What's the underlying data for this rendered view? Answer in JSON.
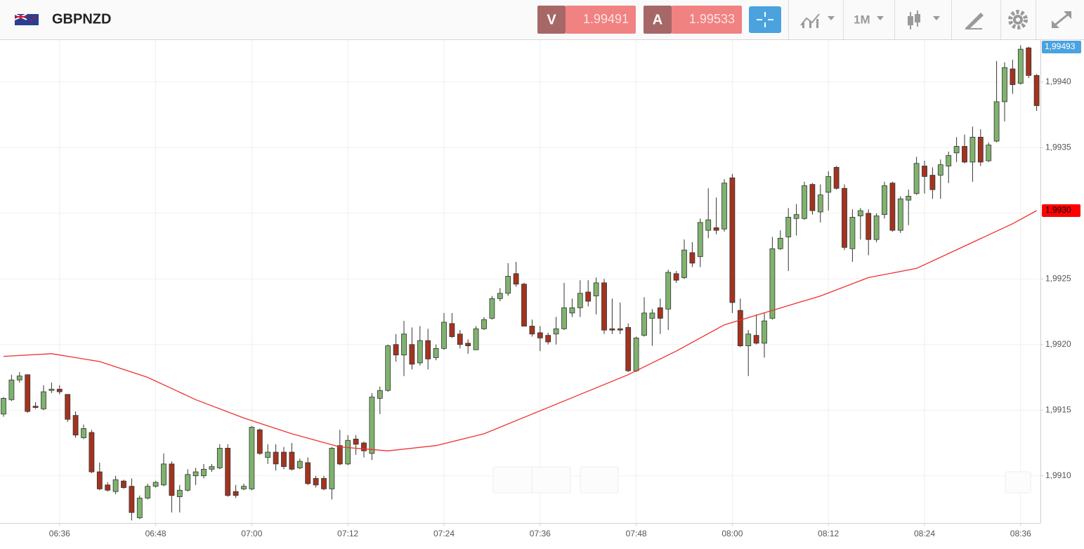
{
  "header": {
    "symbol": "GBPNZD",
    "bid_tag": "V",
    "bid": "1.99491",
    "ask_tag": "A",
    "ask": "1.99533",
    "timeframe": "1M"
  },
  "chart_data": {
    "type": "candlestick",
    "price_label": "1,99493",
    "ma_label": "1,9930",
    "up_color": "#7fb26e",
    "down_color": "#a3331f",
    "ma_color": "#f03030",
    "grid": true,
    "ylim": [
      1.99064,
      1.99432
    ],
    "yticks": [
      {
        "value": 1.991,
        "label": "1,9910"
      },
      {
        "value": 1.9915,
        "label": "1,9915"
      },
      {
        "value": 1.992,
        "label": "1,9920"
      },
      {
        "value": 1.9925,
        "label": "1,9925"
      },
      {
        "value": 1.993,
        "label": "1,9930"
      },
      {
        "value": 1.9935,
        "label": "1,9935"
      },
      {
        "value": 1.994,
        "label": "1,9940"
      }
    ],
    "xticks": [
      "06:36",
      "06:48",
      "07:00",
      "07:12",
      "07:24",
      "07:36",
      "07:48",
      "08:00",
      "08:12",
      "08:24",
      "08:36"
    ],
    "x": [
      "06:29",
      "06:30",
      "06:31",
      "06:32",
      "06:33",
      "06:34",
      "06:35",
      "06:36",
      "06:37",
      "06:38",
      "06:39",
      "06:40",
      "06:41",
      "06:42",
      "06:43",
      "06:44",
      "06:45",
      "06:46",
      "06:47",
      "06:48",
      "06:49",
      "06:50",
      "06:51",
      "06:52",
      "06:53",
      "06:54",
      "06:55",
      "06:56",
      "06:57",
      "06:58",
      "06:59",
      "07:00",
      "07:01",
      "07:02",
      "07:03",
      "07:04",
      "07:05",
      "07:06",
      "07:07",
      "07:08",
      "07:09",
      "07:10",
      "07:11",
      "07:12",
      "07:13",
      "07:14",
      "07:15",
      "07:16",
      "07:17",
      "07:18",
      "07:19",
      "07:20",
      "07:21",
      "07:22",
      "07:23",
      "07:24",
      "07:25",
      "07:26",
      "07:27",
      "07:28",
      "07:29",
      "07:30",
      "07:31",
      "07:32",
      "07:33",
      "07:34",
      "07:35",
      "07:36",
      "07:37",
      "07:38",
      "07:39",
      "07:40",
      "07:41",
      "07:42",
      "07:43",
      "07:44",
      "07:45",
      "07:46",
      "07:47",
      "07:48",
      "07:49",
      "07:50",
      "07:51",
      "07:52",
      "07:53",
      "07:54",
      "07:55",
      "07:56",
      "07:57",
      "07:58",
      "07:59",
      "08:00",
      "08:01",
      "08:02",
      "08:03",
      "08:04",
      "08:05",
      "08:06",
      "08:07",
      "08:08",
      "08:09",
      "08:10",
      "08:11",
      "08:12",
      "08:13",
      "08:14",
      "08:15",
      "08:16",
      "08:17",
      "08:18",
      "08:19",
      "08:20",
      "08:21",
      "08:22",
      "08:23",
      "08:24",
      "08:25",
      "08:26",
      "08:27",
      "08:28",
      "08:29",
      "08:30",
      "08:31",
      "08:32",
      "08:33",
      "08:34",
      "08:35",
      "08:36",
      "08:37",
      "08:38"
    ],
    "ohlc": [
      [
        1.99147,
        1.9916,
        1.99145,
        1.99159
      ],
      [
        1.99158,
        1.99177,
        1.99157,
        1.99173
      ],
      [
        1.99173,
        1.99179,
        1.99171,
        1.99176
      ],
      [
        1.99177,
        1.99177,
        1.99148,
        1.99149
      ],
      [
        1.99153,
        1.99156,
        1.99151,
        1.99152
      ],
      [
        1.99151,
        1.99169,
        1.9915,
        1.99164
      ],
      [
        1.99165,
        1.99171,
        1.99163,
        1.99166
      ],
      [
        1.99166,
        1.99169,
        1.99162,
        1.99164
      ],
      [
        1.99162,
        1.99162,
        1.99141,
        1.99143
      ],
      [
        1.99146,
        1.99149,
        1.99129,
        1.99131
      ],
      [
        1.99129,
        1.99139,
        1.99128,
        1.99136
      ],
      [
        1.99133,
        1.99135,
        1.99102,
        1.99103
      ],
      [
        1.99103,
        1.9911,
        1.99089,
        1.9909
      ],
      [
        1.99093,
        1.99095,
        1.99088,
        1.99089
      ],
      [
        1.99088,
        1.991,
        1.99086,
        1.99097
      ],
      [
        1.99096,
        1.99097,
        1.9909,
        1.99091
      ],
      [
        1.99092,
        1.99098,
        1.99066,
        1.99072
      ],
      [
        1.99068,
        1.99085,
        1.99067,
        1.99083
      ],
      [
        1.99083,
        1.99094,
        1.99082,
        1.99092
      ],
      [
        1.99092,
        1.99096,
        1.99091,
        1.99095
      ],
      [
        1.99093,
        1.99117,
        1.99092,
        1.99109
      ],
      [
        1.99109,
        1.99111,
        1.99072,
        1.99085
      ],
      [
        1.99084,
        1.99093,
        1.99072,
        1.99089
      ],
      [
        1.99089,
        1.99105,
        1.99088,
        1.99101
      ],
      [
        1.991,
        1.99106,
        1.99093,
        1.99103
      ],
      [
        1.991,
        1.99109,
        1.99098,
        1.99105
      ],
      [
        1.99105,
        1.99109,
        1.99103,
        1.99107
      ],
      [
        1.99106,
        1.99124,
        1.99105,
        1.99121
      ],
      [
        1.99121,
        1.99124,
        1.99084,
        1.99085
      ],
      [
        1.99088,
        1.99093,
        1.99083,
        1.99085
      ],
      [
        1.9909,
        1.99094,
        1.99089,
        1.99092
      ],
      [
        1.9909,
        1.99138,
        1.99089,
        1.99137
      ],
      [
        1.99135,
        1.99136,
        1.99116,
        1.99117
      ],
      [
        1.99114,
        1.99124,
        1.99109,
        1.99118
      ],
      [
        1.99118,
        1.99124,
        1.99104,
        1.99109
      ],
      [
        1.99118,
        1.99122,
        1.99105,
        1.99107
      ],
      [
        1.99118,
        1.99125,
        1.99104,
        1.99105
      ],
      [
        1.99106,
        1.99113,
        1.99105,
        1.99111
      ],
      [
        1.9911,
        1.99114,
        1.99093,
        1.99094
      ],
      [
        1.99098,
        1.991,
        1.99091,
        1.99093
      ],
      [
        1.99098,
        1.991,
        1.99089,
        1.9909
      ],
      [
        1.9909,
        1.99122,
        1.99082,
        1.99121
      ],
      [
        1.99123,
        1.99135,
        1.99108,
        1.99109
      ],
      [
        1.99109,
        1.99131,
        1.99108,
        1.99127
      ],
      [
        1.99128,
        1.99131,
        1.99116,
        1.99124
      ],
      [
        1.99125,
        1.99126,
        1.99114,
        1.99119
      ],
      [
        1.99117,
        1.99163,
        1.99112,
        1.9916
      ],
      [
        1.99159,
        1.99168,
        1.99147,
        1.99165
      ],
      [
        1.99165,
        1.992,
        1.99164,
        1.99199
      ],
      [
        1.992,
        1.99208,
        1.99187,
        1.99192
      ],
      [
        1.99192,
        1.99218,
        1.99176,
        1.99208
      ],
      [
        1.992,
        1.99213,
        1.99181,
        1.99185
      ],
      [
        1.99186,
        1.99214,
        1.99184,
        1.99203
      ],
      [
        1.99203,
        1.99212,
        1.99181,
        1.99189
      ],
      [
        1.9919,
        1.992,
        1.99188,
        1.99197
      ],
      [
        1.99197,
        1.99224,
        1.99196,
        1.99217
      ],
      [
        1.99216,
        1.99224,
        1.99205,
        1.99206
      ],
      [
        1.99208,
        1.99211,
        1.99197,
        1.992
      ],
      [
        1.99201,
        1.99204,
        1.99193,
        1.99199
      ],
      [
        1.99196,
        1.99214,
        1.99196,
        1.99212
      ],
      [
        1.99212,
        1.99221,
        1.99211,
        1.99219
      ],
      [
        1.9922,
        1.99237,
        1.99219,
        1.99235
      ],
      [
        1.99235,
        1.99243,
        1.99233,
        1.99239
      ],
      [
        1.99239,
        1.99262,
        1.99237,
        1.99252
      ],
      [
        1.99254,
        1.99263,
        1.99244,
        1.99246
      ],
      [
        1.99246,
        1.99247,
        1.99214,
        1.99214
      ],
      [
        1.99214,
        1.99219,
        1.99206,
        1.99208
      ],
      [
        1.99209,
        1.99214,
        1.99195,
        1.99205
      ],
      [
        1.99207,
        1.99209,
        1.992,
        1.99202
      ],
      [
        1.99208,
        1.99221,
        1.992,
        1.99212
      ],
      [
        1.99212,
        1.99247,
        1.99211,
        1.99228
      ],
      [
        1.99224,
        1.99235,
        1.99221,
        1.99228
      ],
      [
        1.99228,
        1.99249,
        1.99221,
        1.99239
      ],
      [
        1.9924,
        1.99249,
        1.99229,
        1.99233
      ],
      [
        1.99237,
        1.99251,
        1.99223,
        1.99247
      ],
      [
        1.99247,
        1.9925,
        1.99208,
        1.99211
      ],
      [
        1.99212,
        1.99235,
        1.99208,
        1.99211
      ],
      [
        1.99212,
        1.99232,
        1.99208,
        1.99211
      ],
      [
        1.99213,
        1.99216,
        1.99179,
        1.9918
      ],
      [
        1.9918,
        1.99206,
        1.99179,
        1.99205
      ],
      [
        1.99207,
        1.99236,
        1.99206,
        1.99224
      ],
      [
        1.9922,
        1.99227,
        1.99199,
        1.99224
      ],
      [
        1.99228,
        1.99235,
        1.99208,
        1.9922
      ],
      [
        1.99227,
        1.99257,
        1.99211,
        1.99255
      ],
      [
        1.99254,
        1.99256,
        1.99247,
        1.99249
      ],
      [
        1.99251,
        1.9928,
        1.9925,
        1.99272
      ],
      [
        1.9927,
        1.99278,
        1.99259,
        1.99262
      ],
      [
        1.99267,
        1.99296,
        1.99259,
        1.99293
      ],
      [
        1.99287,
        1.99319,
        1.99281,
        1.99295
      ],
      [
        1.99289,
        1.99312,
        1.99284,
        1.99287
      ],
      [
        1.99288,
        1.99326,
        1.99286,
        1.99323
      ],
      [
        1.99327,
        1.9933,
        1.99224,
        1.99232
      ],
      [
        1.99226,
        1.99235,
        1.99198,
        1.99199
      ],
      [
        1.99199,
        1.99211,
        1.99176,
        1.99208
      ],
      [
        1.99207,
        1.99223,
        1.992,
        1.99201
      ],
      [
        1.99201,
        1.99224,
        1.9919,
        1.99218
      ],
      [
        1.9922,
        1.99282,
        1.99219,
        1.99273
      ],
      [
        1.99273,
        1.99287,
        1.99272,
        1.99281
      ],
      [
        1.99282,
        1.99304,
        1.99256,
        1.99297
      ],
      [
        1.99296,
        1.99307,
        1.99283,
        1.99299
      ],
      [
        1.99296,
        1.99324,
        1.99295,
        1.99321
      ],
      [
        1.99322,
        1.99323,
        1.99299,
        1.99302
      ],
      [
        1.99301,
        1.99322,
        1.99293,
        1.99314
      ],
      [
        1.99316,
        1.99332,
        1.99302,
        1.99328
      ],
      [
        1.99335,
        1.99336,
        1.99318,
        1.99319
      ],
      [
        1.99319,
        1.99322,
        1.99272,
        1.99274
      ],
      [
        1.99273,
        1.99303,
        1.99263,
        1.99297
      ],
      [
        1.99298,
        1.99304,
        1.9928,
        1.99302
      ],
      [
        1.993,
        1.99303,
        1.99268,
        1.9928
      ],
      [
        1.9928,
        1.993,
        1.99278,
        1.99298
      ],
      [
        1.99299,
        1.99324,
        1.99296,
        1.99321
      ],
      [
        1.99323,
        1.99324,
        1.99286,
        1.99287
      ],
      [
        1.99287,
        1.99313,
        1.99285,
        1.99311
      ],
      [
        1.9931,
        1.99318,
        1.99291,
        1.99313
      ],
      [
        1.99315,
        1.99343,
        1.99314,
        1.99338
      ],
      [
        1.99336,
        1.9934,
        1.99315,
        1.99328
      ],
      [
        1.99329,
        1.99335,
        1.99311,
        1.99318
      ],
      [
        1.99329,
        1.99341,
        1.99311,
        1.99337
      ],
      [
        1.99336,
        1.99347,
        1.99323,
        1.99344
      ],
      [
        1.99346,
        1.99358,
        1.99339,
        1.99351
      ],
      [
        1.99351,
        1.9936,
        1.99338,
        1.99339
      ],
      [
        1.99339,
        1.99366,
        1.99324,
        1.99358
      ],
      [
        1.99358,
        1.99364,
        1.99336,
        1.99339
      ],
      [
        1.9934,
        1.99354,
        1.99339,
        1.99352
      ],
      [
        1.99355,
        1.99416,
        1.99354,
        1.99385
      ],
      [
        1.99385,
        1.99415,
        1.9937,
        1.99411
      ],
      [
        1.9941,
        1.99417,
        1.99391,
        1.99398
      ],
      [
        1.99399,
        1.99428,
        1.99398,
        1.99425
      ],
      [
        1.99426,
        1.99427,
        1.99403,
        1.99405
      ],
      [
        1.99405,
        1.99406,
        1.99378,
        1.99382
      ]
    ],
    "moving_average": {
      "x": [
        "06:29",
        "06:35",
        "06:41",
        "06:47",
        "06:53",
        "06:59",
        "07:05",
        "07:11",
        "07:17",
        "07:23",
        "07:29",
        "07:35",
        "07:41",
        "07:47",
        "07:53",
        "07:59",
        "08:05",
        "08:11",
        "08:17",
        "08:23",
        "08:29",
        "08:35",
        "08:38"
      ],
      "values": [
        1.99191,
        1.99193,
        1.99187,
        1.99175,
        1.99158,
        1.99144,
        1.99132,
        1.99122,
        1.99119,
        1.99123,
        1.99132,
        1.99147,
        1.99162,
        1.99177,
        1.99195,
        1.99215,
        1.99226,
        1.99237,
        1.99251,
        1.99258,
        1.99275,
        1.99292,
        1.99302
      ]
    }
  }
}
